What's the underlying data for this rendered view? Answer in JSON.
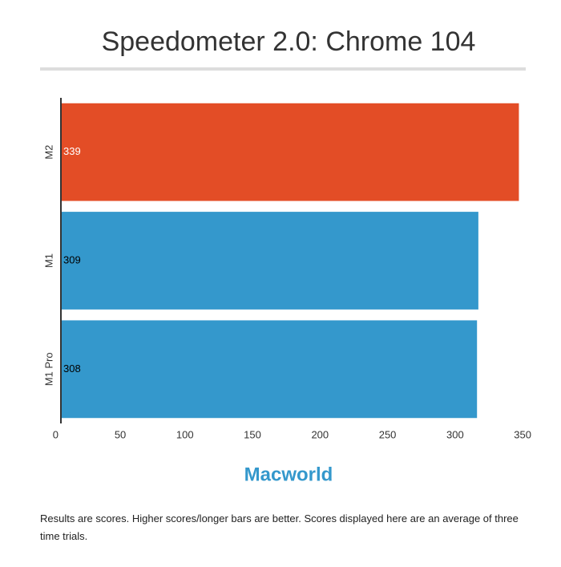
{
  "chart_data": {
    "type": "hbar",
    "title": "Speedometer 2.0: Chrome 104",
    "categories": [
      "M2",
      "M1",
      "M1 Pro"
    ],
    "values": [
      339,
      309,
      308
    ],
    "colors": [
      "#e34d26",
      "#3498cc",
      "#3498cc"
    ],
    "value_label_colors": [
      "#ffffff",
      "#000000",
      "#000000"
    ],
    "xlim": [
      0,
      350
    ],
    "xticks": [
      0,
      50,
      100,
      150,
      200,
      250,
      300,
      350
    ],
    "grid": false
  },
  "logo": "Macworld",
  "footnote": "Results are scores. Higher scores/longer bars are better. Scores displayed here are an average of three time trials."
}
